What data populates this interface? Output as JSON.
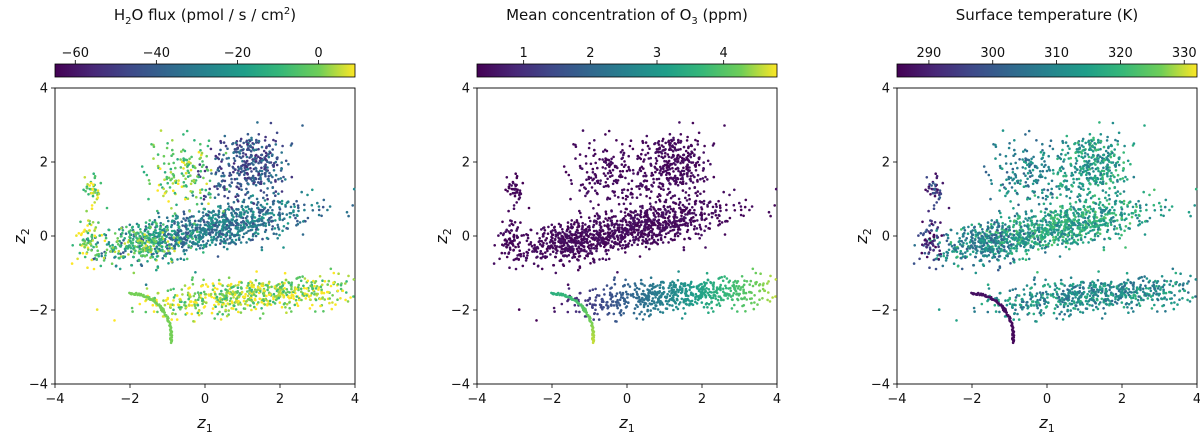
{
  "chart_data": [
    {
      "type": "scatter",
      "colorbar": {
        "title_parts": [
          "H",
          "2",
          "O flux (pmol / s / cm",
          "2",
          ")"
        ],
        "range": [
          -65,
          9
        ],
        "ticks": [
          -60,
          -40,
          -20,
          0
        ],
        "colormap": "viridis"
      },
      "xlabel": {
        "base": "z",
        "sub": "1"
      },
      "ylabel": {
        "base": "z",
        "sub": "2"
      },
      "xlim": [
        -4,
        4
      ],
      "ylim": [
        -4,
        4
      ],
      "xticks": [
        -4,
        -2,
        0,
        2,
        4
      ],
      "yticks": [
        -4,
        -2,
        0,
        2,
        4
      ],
      "point_color_profile": "flux"
    },
    {
      "type": "scatter",
      "colorbar": {
        "title_parts": [
          "Mean concentration of O",
          "3",
          " (ppm)"
        ],
        "range": [
          0.3,
          4.8
        ],
        "ticks": [
          1,
          2,
          3,
          4
        ],
        "colormap": "viridis"
      },
      "xlabel": {
        "base": "z",
        "sub": "1"
      },
      "ylabel": {
        "base": "z",
        "sub": "2"
      },
      "xlim": [
        -4,
        4
      ],
      "ylim": [
        -4,
        4
      ],
      "xticks": [
        -4,
        -2,
        0,
        2,
        4
      ],
      "yticks": [
        -4,
        -2,
        0,
        2,
        4
      ],
      "point_color_profile": "ozone"
    },
    {
      "type": "scatter",
      "colorbar": {
        "title_parts": [
          "Surface temperature (K)"
        ],
        "range": [
          285,
          332
        ],
        "ticks": [
          290,
          300,
          310,
          320,
          330
        ],
        "colormap": "viridis"
      },
      "xlabel": {
        "base": "z",
        "sub": "1"
      },
      "ylabel": {
        "base": "z",
        "sub": "2"
      },
      "xlim": [
        -4,
        4
      ],
      "ylim": [
        -4,
        4
      ],
      "xticks": [
        -4,
        -2,
        0,
        2,
        4
      ],
      "yticks": [
        -4,
        -2,
        0,
        2,
        4
      ],
      "point_color_profile": "temperature"
    }
  ],
  "clusters": [
    {
      "id": "central-band",
      "center": [
        0.2,
        0.2
      ],
      "spread": [
        1.3,
        0.28
      ],
      "angle": 0.18,
      "count": 900,
      "flux": 0.45,
      "ozone": 0.03,
      "temperature": 0.65
    },
    {
      "id": "upper-stripes",
      "center": [
        1.2,
        1.9
      ],
      "spread": [
        0.55,
        0.45
      ],
      "angle": 0.55,
      "count": 380,
      "flux": 0.3,
      "ozone": 0.03,
      "temperature": 0.62
    },
    {
      "id": "upper-left-stripes",
      "center": [
        -0.6,
        1.7
      ],
      "spread": [
        0.5,
        0.45
      ],
      "angle": 0.9,
      "count": 160,
      "flux": 0.85,
      "ozone": 0.03,
      "temperature": 0.5
    },
    {
      "id": "left-arc-top",
      "center": [
        -3.0,
        1.3
      ],
      "spread": [
        0.1,
        0.22
      ],
      "angle": 0.3,
      "count": 40,
      "flux": 0.9,
      "ozone": 0.02,
      "temperature": 0.2
    },
    {
      "id": "left-blob",
      "center": [
        -3.1,
        -0.1
      ],
      "spread": [
        0.15,
        0.35
      ],
      "angle": 0.0,
      "count": 70,
      "flux": 0.9,
      "ozone": 0.02,
      "temperature": 0.15
    },
    {
      "id": "lower-fan",
      "center": [
        1.3,
        -1.6
      ],
      "spread": [
        1.4,
        0.22
      ],
      "angle": 0.08,
      "count": 650,
      "flux": 0.92,
      "ozone": 0.6,
      "temperature": 0.55
    },
    {
      "id": "left-mid-band",
      "center": [
        -1.6,
        -0.2
      ],
      "spread": [
        0.6,
        0.3
      ],
      "angle": 0.1,
      "count": 260,
      "flux": 0.8,
      "ozone": 0.03,
      "temperature": 0.48
    }
  ],
  "hook_curve": {
    "from": [
      -2.0,
      -1.55
    ],
    "to": [
      -0.9,
      -2.7
    ],
    "count": 90,
    "flux": 0.88,
    "ozone_from": 0.7,
    "ozone_to": 0.95,
    "temperature_from": 0.05,
    "temperature_to": 0.02
  }
}
